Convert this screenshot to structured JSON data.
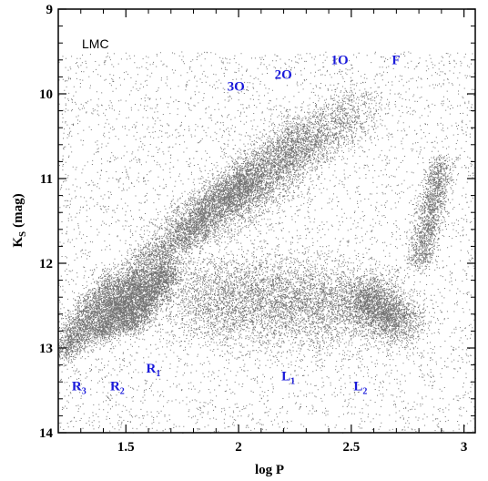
{
  "chart_data": {
    "type": "scatter",
    "panel_label": "LMC",
    "xlabel": "log P",
    "ylabel_main": "K",
    "ylabel_sub": "S",
    "ylabel_unit": "(mag)",
    "xlim": [
      1.2,
      3.05
    ],
    "ylim": [
      14,
      9
    ],
    "y_inverted": true,
    "grid": false,
    "x_ticks": [
      1.5,
      2,
      2.5,
      3
    ],
    "x_tick_labels": [
      "1.5",
      "2",
      "2.5",
      "3"
    ],
    "y_ticks": [
      9,
      10,
      11,
      12,
      13,
      14
    ],
    "y_tick_labels": [
      "9",
      "10",
      "11",
      "12",
      "13",
      "14"
    ],
    "point_color": "#000000",
    "label_color": "#1a1adb",
    "sequence_labels": [
      {
        "text": "3O",
        "sub": "",
        "x": 1.95,
        "y": 9.96
      },
      {
        "text": "2O",
        "sub": "",
        "x": 2.16,
        "y": 9.82
      },
      {
        "text": "1O",
        "sub": "",
        "x": 2.41,
        "y": 9.65
      },
      {
        "text": "F",
        "sub": "",
        "x": 2.68,
        "y": 9.65
      },
      {
        "text": "R",
        "sub": "3",
        "x": 1.26,
        "y": 13.5
      },
      {
        "text": "R",
        "sub": "2",
        "x": 1.43,
        "y": 13.5
      },
      {
        "text": "R",
        "sub": "1",
        "x": 1.59,
        "y": 13.29
      },
      {
        "text": "L",
        "sub": "1",
        "x": 2.19,
        "y": 13.38
      },
      {
        "text": "L",
        "sub": "2",
        "x": 2.51,
        "y": 13.5
      }
    ],
    "density_components": [
      {
        "name": "R3",
        "x": [
          1.22,
          1.45
        ],
        "y": [
          13.05,
          12.2
        ],
        "width": 0.04,
        "weight": 2200
      },
      {
        "name": "R2",
        "x": [
          1.38,
          1.57
        ],
        "y": [
          12.85,
          12.15
        ],
        "width": 0.035,
        "weight": 2200
      },
      {
        "name": "R1",
        "x": [
          1.5,
          1.7
        ],
        "y": [
          12.75,
          12.05
        ],
        "width": 0.035,
        "weight": 2200
      },
      {
        "name": "3O",
        "x": [
          1.55,
          2.05
        ],
        "y": [
          12.1,
          10.95
        ],
        "width": 0.05,
        "weight": 2600
      },
      {
        "name": "2O",
        "x": [
          1.75,
          2.3
        ],
        "y": [
          11.7,
          10.4
        ],
        "width": 0.06,
        "weight": 2800
      },
      {
        "name": "1O",
        "x": [
          1.95,
          2.55
        ],
        "y": [
          11.4,
          10.1
        ],
        "width": 0.07,
        "weight": 2600
      },
      {
        "name": "F",
        "x": [
          2.8,
          2.9
        ],
        "y": [
          12.0,
          10.8
        ],
        "width": 0.03,
        "weight": 1600
      },
      {
        "name": "L1",
        "x": [
          1.8,
          2.55
        ],
        "y": [
          12.4,
          12.5
        ],
        "width": 0.12,
        "weight": 5000
      },
      {
        "name": "L2",
        "x": [
          2.55,
          2.72
        ],
        "y": [
          12.35,
          12.75
        ],
        "width": 0.06,
        "weight": 2400
      },
      {
        "name": "background",
        "x": [
          1.2,
          3.05
        ],
        "y": [
          9.5,
          14.0
        ],
        "width": 0.0,
        "weight": 9000
      }
    ]
  }
}
